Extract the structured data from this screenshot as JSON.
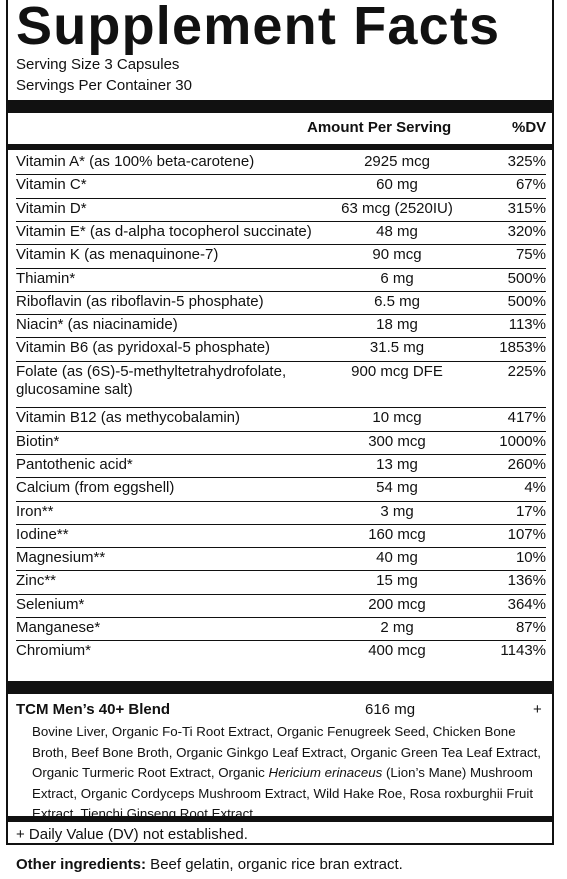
{
  "title": "Supplement Facts",
  "serving_size": "Serving Size 3 Capsules",
  "servings_per_container": "Servings Per Container 30",
  "header": {
    "amount": "Amount Per Serving",
    "dv": "%DV"
  },
  "nutrients": [
    {
      "name": "Vitamin A* (as 100% beta-carotene)",
      "amount": "2925 mcg",
      "dv": "325%"
    },
    {
      "name": "Vitamin C*",
      "amount": "60 mg",
      "dv": "67%"
    },
    {
      "name": "Vitamin D*",
      "amount": "63 mcg (2520IU)",
      "dv": "315%"
    },
    {
      "name": "Vitamin E* (as d-alpha tocopherol succinate)",
      "amount": "48 mg",
      "dv": "320%"
    },
    {
      "name": "Vitamin K (as menaquinone-7)",
      "amount": "90 mcg",
      "dv": "75%"
    },
    {
      "name": "Thiamin*",
      "amount": "6 mg",
      "dv": "500%"
    },
    {
      "name": "Riboflavin (as riboflavin-5 phosphate)",
      "amount": "6.5 mg",
      "dv": "500%"
    },
    {
      "name": "Niacin* (as niacinamide)",
      "amount": "18 mg",
      "dv": "113%"
    },
    {
      "name": "Vitamin B6 (as pyridoxal-5 phosphate)",
      "amount": "31.5 mg",
      "dv": "1853%"
    },
    {
      "name": "Folate (as (6S)-5-methyltetrahydrofolate, glucosamine salt)",
      "amount": "900 mcg DFE",
      "dv": "225%"
    },
    {
      "name": "Vitamin B12 (as methycobalamin)",
      "amount": "10 mcg",
      "dv": "417%"
    },
    {
      "name": "Biotin*",
      "amount": "300 mcg",
      "dv": "1000%"
    },
    {
      "name": "Pantothenic acid*",
      "amount": "13 mg",
      "dv": "260%"
    },
    {
      "name": "Calcium (from eggshell)",
      "amount": "54 mg",
      "dv": "4%"
    },
    {
      "name": "Iron**",
      "amount": "3 mg",
      "dv": "17%"
    },
    {
      "name": "Iodine**",
      "amount": "160 mcg",
      "dv": "107%"
    },
    {
      "name": "Magnesium**",
      "amount": "40 mg",
      "dv": "10%"
    },
    {
      "name": "Zinc**",
      "amount": "15 mg",
      "dv": "136%"
    },
    {
      "name": "Selenium*",
      "amount": "200 mcg",
      "dv": "364%"
    },
    {
      "name": "Manganese*",
      "amount": "2 mg",
      "dv": "87%"
    },
    {
      "name": "Chromium*",
      "amount": "400 mcg",
      "dv": "1143%"
    }
  ],
  "blend": {
    "title": "TCM Men’s 40+ Blend",
    "amount": "616 mg",
    "dv": "+",
    "ingredients_before": "Bovine Liver, Organic Fo-Ti Root Extract, Organic Fenugreek Seed, Chicken Bone Broth, Beef Bone Broth, Organic Ginkgo Leaf Extract, Organic Green Tea Leaf Extract, Organic Turmeric Root Extract, Organic ",
    "ingredients_italic": "Hericium erinaceus",
    "ingredients_after": " (Lion’s Mane) Mushroom Extract, Organic Cordyceps Mushroom Extract, Wild Hake Roe, Rosa roxburghii Fruit Extract, Tienchi Ginseng Root Extract."
  },
  "footnote": "+ Daily Value (DV) not established.",
  "other_label": "Other ingredients:",
  "other_text": " Beef gelatin, organic rice bran extract."
}
